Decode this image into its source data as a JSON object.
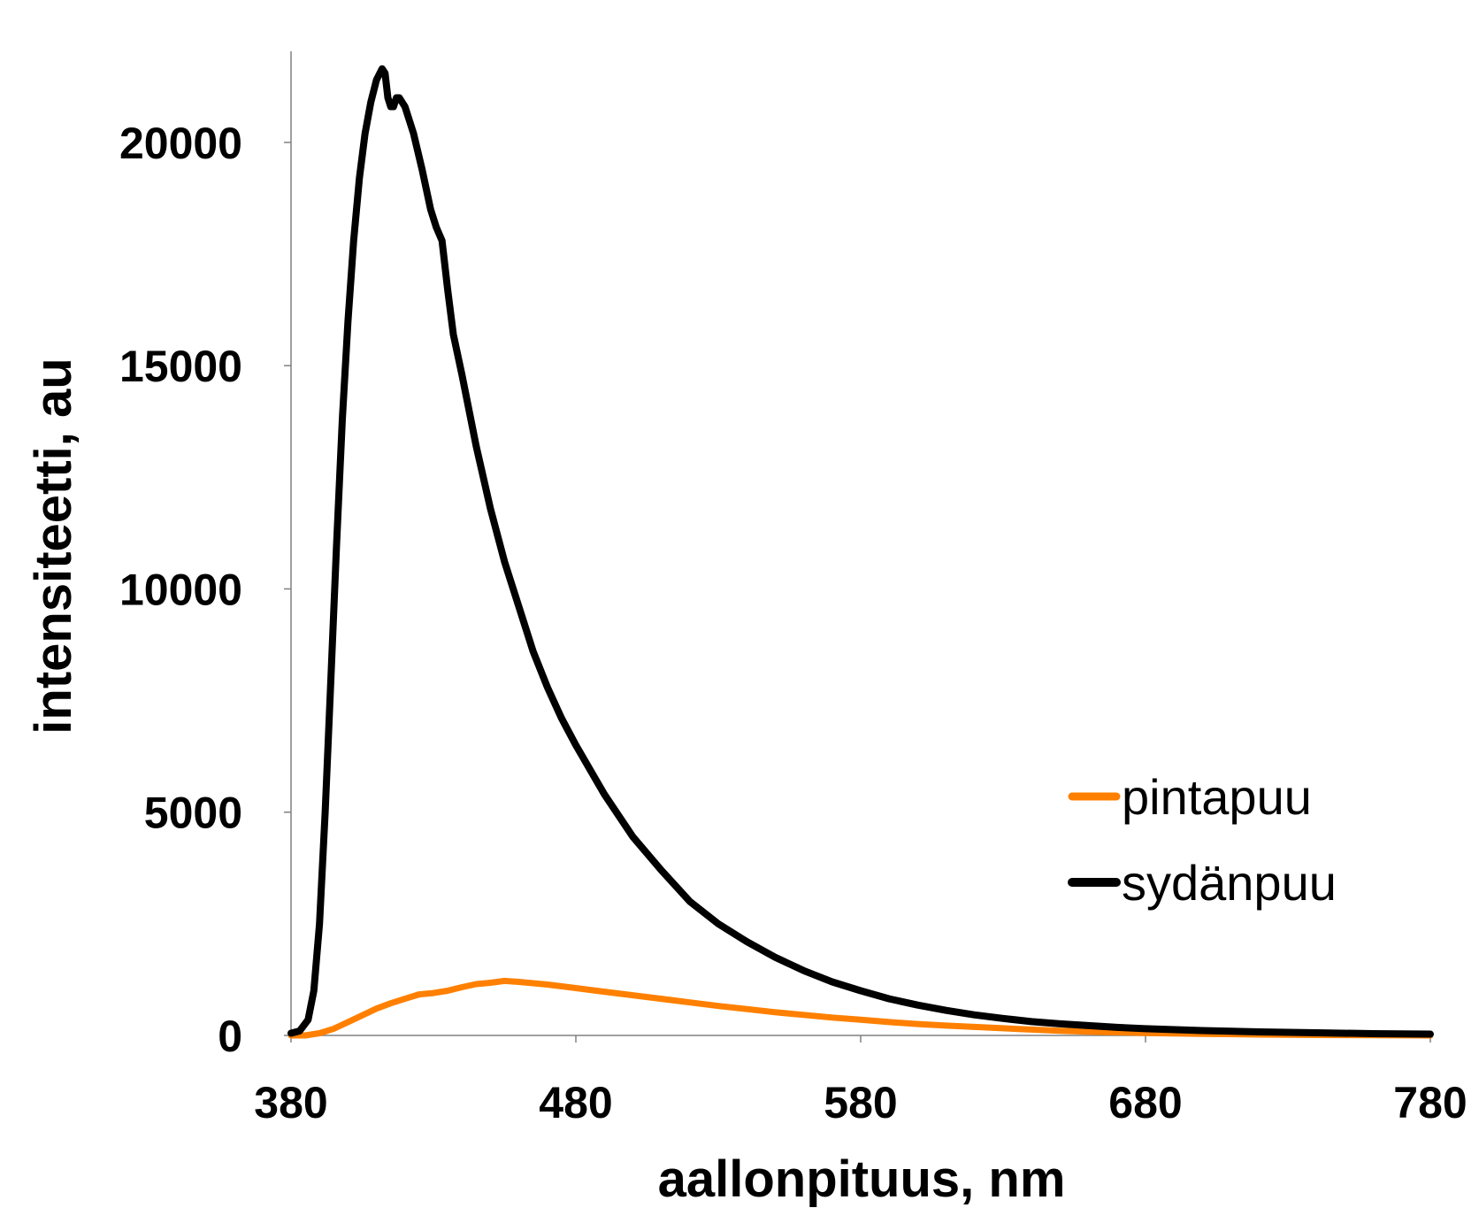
{
  "chart_data": {
    "type": "line",
    "xlabel": "aallonpituus, nm",
    "ylabel": "intensiteetti, au",
    "xlim": [
      380,
      780
    ],
    "ylim": [
      0,
      22000
    ],
    "x_ticks": [
      380,
      480,
      580,
      680,
      780
    ],
    "y_ticks": [
      0,
      5000,
      10000,
      15000,
      20000
    ],
    "grid": false,
    "legend_position": "right",
    "series": [
      {
        "name": "pintapuu",
        "color": "#FF8000",
        "points": [
          [
            380,
            0
          ],
          [
            385,
            0
          ],
          [
            390,
            50
          ],
          [
            395,
            150
          ],
          [
            400,
            300
          ],
          [
            405,
            450
          ],
          [
            410,
            600
          ],
          [
            415,
            720
          ],
          [
            420,
            820
          ],
          [
            425,
            920
          ],
          [
            430,
            950
          ],
          [
            435,
            1000
          ],
          [
            440,
            1080
          ],
          [
            445,
            1150
          ],
          [
            450,
            1180
          ],
          [
            455,
            1220
          ],
          [
            460,
            1200
          ],
          [
            465,
            1170
          ],
          [
            470,
            1140
          ],
          [
            475,
            1100
          ],
          [
            480,
            1060
          ],
          [
            490,
            980
          ],
          [
            500,
            900
          ],
          [
            510,
            820
          ],
          [
            520,
            740
          ],
          [
            530,
            660
          ],
          [
            540,
            590
          ],
          [
            550,
            520
          ],
          [
            560,
            460
          ],
          [
            570,
            400
          ],
          [
            580,
            350
          ],
          [
            590,
            300
          ],
          [
            600,
            255
          ],
          [
            610,
            220
          ],
          [
            620,
            190
          ],
          [
            630,
            160
          ],
          [
            640,
            130
          ],
          [
            650,
            105
          ],
          [
            660,
            85
          ],
          [
            670,
            70
          ],
          [
            680,
            55
          ],
          [
            700,
            35
          ],
          [
            720,
            20
          ],
          [
            740,
            10
          ],
          [
            760,
            5
          ],
          [
            780,
            0
          ]
        ]
      },
      {
        "name": "sydänpuu",
        "color": "#000000",
        "points": [
          [
            380,
            50
          ],
          [
            383,
            100
          ],
          [
            386,
            350
          ],
          [
            388,
            1000
          ],
          [
            390,
            2500
          ],
          [
            392,
            5000
          ],
          [
            394,
            8000
          ],
          [
            396,
            11000
          ],
          [
            398,
            13800
          ],
          [
            400,
            16000
          ],
          [
            402,
            17800
          ],
          [
            404,
            19200
          ],
          [
            406,
            20200
          ],
          [
            408,
            20900
          ],
          [
            410,
            21400
          ],
          [
            412,
            21650
          ],
          [
            413,
            21550
          ],
          [
            414,
            21000
          ],
          [
            415,
            20800
          ],
          [
            416,
            20800
          ],
          [
            417,
            21000
          ],
          [
            418,
            21000
          ],
          [
            420,
            20800
          ],
          [
            423,
            20200
          ],
          [
            426,
            19400
          ],
          [
            429,
            18500
          ],
          [
            431,
            18100
          ],
          [
            433,
            17800
          ],
          [
            435,
            16700
          ],
          [
            437,
            15700
          ],
          [
            440,
            14800
          ],
          [
            445,
            13200
          ],
          [
            450,
            11800
          ],
          [
            455,
            10600
          ],
          [
            460,
            9600
          ],
          [
            465,
            8600
          ],
          [
            470,
            7800
          ],
          [
            475,
            7100
          ],
          [
            480,
            6500
          ],
          [
            490,
            5400
          ],
          [
            500,
            4450
          ],
          [
            510,
            3700
          ],
          [
            520,
            3000
          ],
          [
            530,
            2500
          ],
          [
            540,
            2100
          ],
          [
            550,
            1750
          ],
          [
            560,
            1450
          ],
          [
            570,
            1200
          ],
          [
            580,
            1000
          ],
          [
            590,
            820
          ],
          [
            600,
            680
          ],
          [
            610,
            560
          ],
          [
            620,
            460
          ],
          [
            630,
            380
          ],
          [
            640,
            310
          ],
          [
            650,
            260
          ],
          [
            660,
            220
          ],
          [
            670,
            180
          ],
          [
            680,
            150
          ],
          [
            700,
            110
          ],
          [
            720,
            80
          ],
          [
            740,
            60
          ],
          [
            760,
            40
          ],
          [
            780,
            30
          ]
        ]
      }
    ]
  }
}
